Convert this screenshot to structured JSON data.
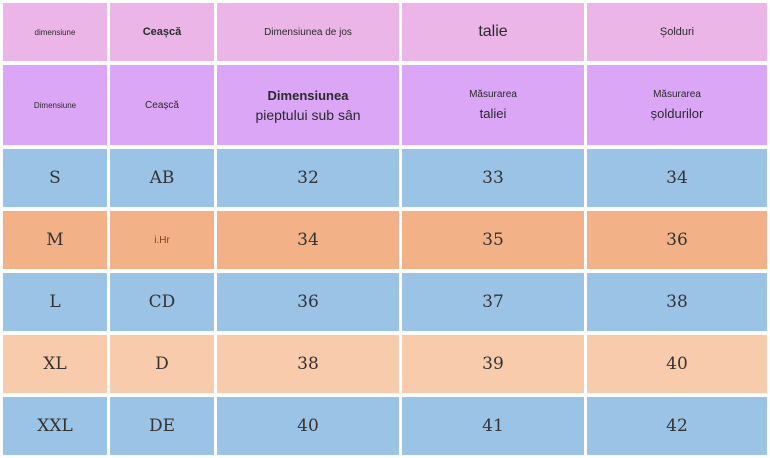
{
  "header_row_1": [
    "dimensiune",
    "Ceașcă",
    "Dimensiunea de jos",
    "talie",
    "Șolduri"
  ],
  "header_row_2": [
    [
      "Dimensiune"
    ],
    [
      "Ceașcă"
    ],
    [
      "Dimensiunea",
      "pieptului sub sân"
    ],
    [
      "Măsurarea",
      "taliei"
    ],
    [
      "Măsurarea",
      "șoldurilor"
    ]
  ],
  "rows": [
    [
      "S",
      "AB",
      "32",
      "33",
      "34"
    ],
    [
      "M",
      "i.Hr",
      "34",
      "35",
      "36"
    ],
    [
      "L",
      "CD",
      "36",
      "37",
      "38"
    ],
    [
      "XL",
      "D",
      "38",
      "39",
      "40"
    ],
    [
      "XXL",
      "DE",
      "40",
      "41",
      "42"
    ]
  ],
  "row_colors": [
    "#9bc3e6",
    "#f3b187",
    "#9bc3e6",
    "#f8cbad",
    "#9bc3e6"
  ]
}
